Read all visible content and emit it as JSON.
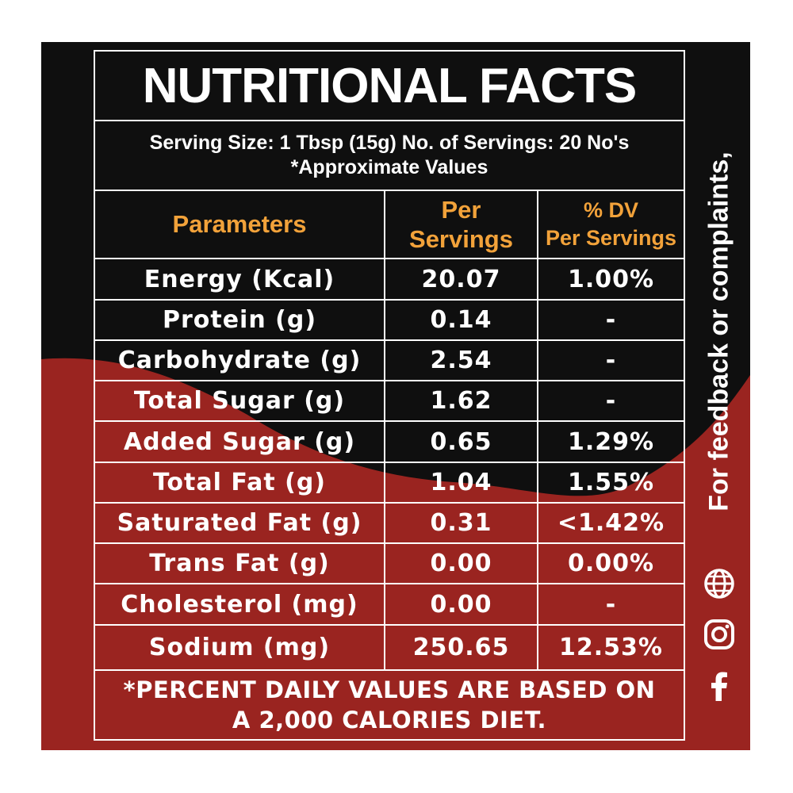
{
  "title": "NUTRITIONAL FACTS",
  "serving": {
    "line1": "Serving Size: 1 Tbsp (15g) No. of Servings: 20 No's",
    "line2": "*Approximate Values"
  },
  "table": {
    "headers": {
      "parameters": "Parameters",
      "per_line1": "Per",
      "per_line2": "Servings",
      "dv_line1": "% DV",
      "dv_line2": "Per Servings"
    },
    "rows": [
      {
        "param": "Energy (Kcal)",
        "per": "20.07",
        "dv": "1.00%"
      },
      {
        "param": "Protein (g)",
        "per": "0.14",
        "dv": "-"
      },
      {
        "param": "Carbohydrate (g)",
        "per": "2.54",
        "dv": "-"
      },
      {
        "param": "Total Sugar (g)",
        "per": "1.62",
        "dv": "-"
      },
      {
        "param": "Added Sugar (g)",
        "per": "0.65",
        "dv": "1.29%"
      },
      {
        "param": "Total Fat (g)",
        "per": "1.04",
        "dv": "1.55%"
      },
      {
        "param": "Saturated Fat (g)",
        "per": "0.31",
        "dv": "<1.42%"
      },
      {
        "param": "Trans Fat (g)",
        "per": "0.00",
        "dv": "0.00%"
      },
      {
        "param": "Cholesterol (mg)",
        "per": "0.00",
        "dv": "-"
      },
      {
        "param": "Sodium (mg)",
        "per": "250.65",
        "dv": "12.53%"
      }
    ]
  },
  "footnote": {
    "line1": "*PERCENT DAILY VALUES ARE BASED ON",
    "line2": "A 2,000 CALORIES DIET."
  },
  "sidebar": {
    "feedback_text": "For feedback or complaints,",
    "icons": [
      "globe-icon",
      "instagram-icon",
      "facebook-icon"
    ]
  },
  "colors": {
    "dark": "#0f0f0f",
    "red": "#9a2420",
    "accent": "#f2a23a",
    "text": "#ffffff"
  }
}
